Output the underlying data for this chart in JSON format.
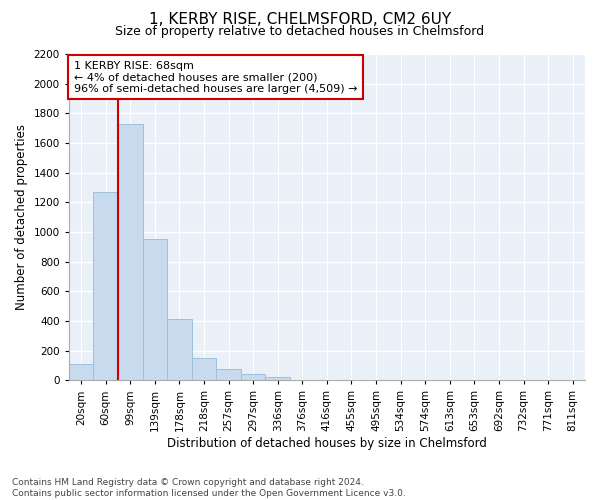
{
  "title": "1, KERBY RISE, CHELMSFORD, CM2 6UY",
  "subtitle": "Size of property relative to detached houses in Chelmsford",
  "xlabel": "Distribution of detached houses by size in Chelmsford",
  "ylabel": "Number of detached properties",
  "bar_color": "#c8daee",
  "bar_edge_color": "#a0bfda",
  "background_color": "#eaf0f8",
  "grid_color": "#ffffff",
  "categories": [
    "20sqm",
    "60sqm",
    "99sqm",
    "139sqm",
    "178sqm",
    "218sqm",
    "257sqm",
    "297sqm",
    "336sqm",
    "376sqm",
    "416sqm",
    "455sqm",
    "495sqm",
    "534sqm",
    "574sqm",
    "613sqm",
    "653sqm",
    "692sqm",
    "732sqm",
    "771sqm",
    "811sqm"
  ],
  "values": [
    107,
    1270,
    1730,
    950,
    415,
    150,
    75,
    42,
    25,
    0,
    0,
    0,
    0,
    0,
    0,
    0,
    0,
    0,
    0,
    0,
    0
  ],
  "ylim": [
    0,
    2200
  ],
  "yticks": [
    0,
    200,
    400,
    600,
    800,
    1000,
    1200,
    1400,
    1600,
    1800,
    2000,
    2200
  ],
  "annotation_text": "1 KERBY RISE: 68sqm\n← 4% of detached houses are smaller (200)\n96% of semi-detached houses are larger (4,509) →",
  "annotation_box_color": "#ffffff",
  "annotation_box_edge": "#cc0000",
  "vline_x": 1.5,
  "vline_color": "#cc0000",
  "footnote": "Contains HM Land Registry data © Crown copyright and database right 2024.\nContains public sector information licensed under the Open Government Licence v3.0.",
  "title_fontsize": 11,
  "subtitle_fontsize": 9,
  "xlabel_fontsize": 8.5,
  "ylabel_fontsize": 8.5,
  "tick_fontsize": 7.5,
  "annot_fontsize": 8,
  "footnote_fontsize": 6.5
}
